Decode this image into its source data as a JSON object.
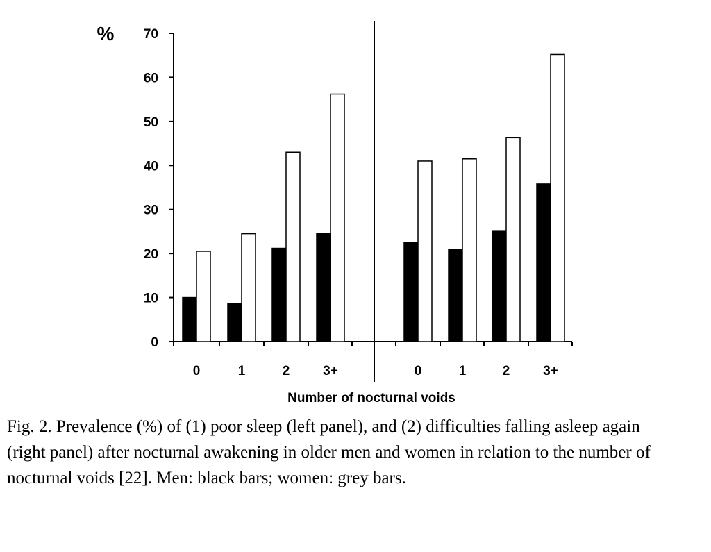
{
  "chart_data": {
    "type": "bar",
    "ylabel": "%",
    "xlabel": "Number of nocturnal voids",
    "ylim": [
      0,
      70
    ],
    "yticks": [
      "0",
      "10",
      "20",
      "30",
      "40",
      "50",
      "60",
      "70"
    ],
    "panels": [
      {
        "categories": [
          "0",
          "1",
          "2",
          "3+"
        ],
        "series": [
          {
            "values": [
              10,
              8.7,
              21.2,
              24.5
            ],
            "color": "#000000"
          },
          {
            "values": [
              20.5,
              24.5,
              43,
              56.2
            ],
            "color": "#ffffff"
          }
        ]
      },
      {
        "categories": [
          "0",
          "1",
          "2",
          "3+"
        ],
        "series": [
          {
            "values": [
              22.5,
              21,
              25.2,
              35.8
            ],
            "color": "#000000"
          },
          {
            "values": [
              41,
              41.5,
              46.3,
              65.2
            ],
            "color": "#ffffff"
          }
        ]
      }
    ]
  },
  "caption": "Fig. 2. Prevalence (%) of (1) poor sleep (left panel), and (2) difficulties falling asleep again (right panel) after nocturnal awakening in older men and women in relation to the number of nocturnal voids [22]. Men: black bars; women: grey bars."
}
